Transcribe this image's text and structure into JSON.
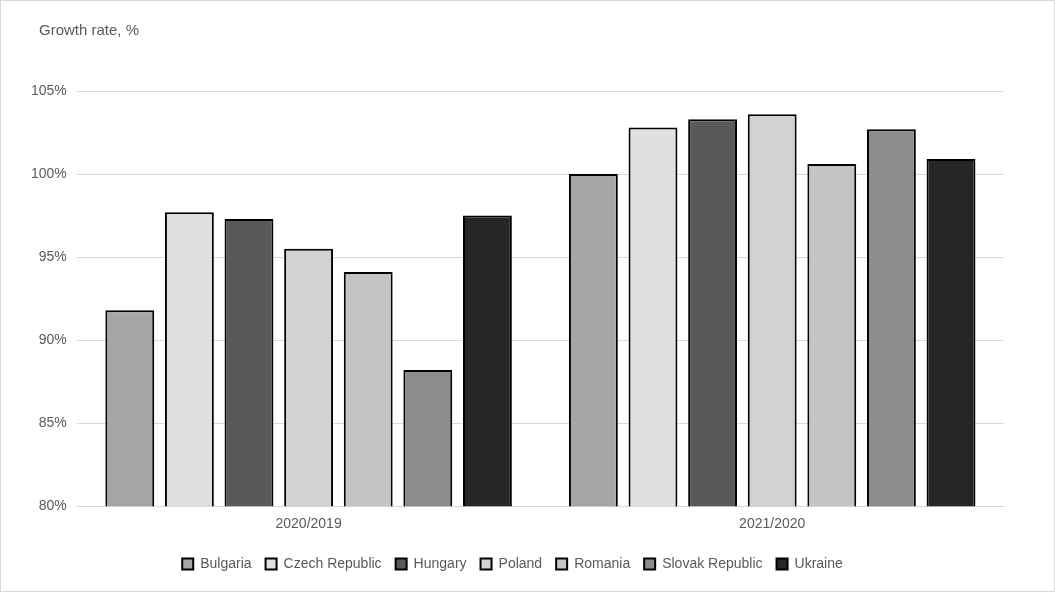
{
  "chart_data": {
    "type": "bar",
    "ylabel": "Growth rate, %",
    "categories": [
      "2020/2019",
      "2021/2020"
    ],
    "series": [
      {
        "name": "Bulgaria",
        "color": "#a6a6a6",
        "values": [
          91.8,
          100.0
        ]
      },
      {
        "name": "Czech Republic",
        "color": "#e0e0e0",
        "values": [
          97.7,
          102.8
        ]
      },
      {
        "name": "Hungary",
        "color": "#595959",
        "values": [
          97.3,
          103.3
        ]
      },
      {
        "name": "Poland",
        "color": "#d2d2d2",
        "values": [
          95.5,
          103.6
        ]
      },
      {
        "name": "Romania",
        "color": "#c4c4c4",
        "values": [
          94.1,
          100.6
        ]
      },
      {
        "name": "Slovak Republic",
        "color": "#8c8c8c",
        "values": [
          88.2,
          102.7
        ]
      },
      {
        "name": "Ukraine",
        "color": "#262626",
        "values": [
          97.5,
          100.9
        ]
      }
    ],
    "ylim": [
      80,
      105
    ],
    "yticks": [
      {
        "value": 80,
        "label": "80%"
      },
      {
        "value": 85,
        "label": "85%"
      },
      {
        "value": 90,
        "label": "90%"
      },
      {
        "value": 95,
        "label": "95%"
      },
      {
        "value": 100,
        "label": "100%"
      },
      {
        "value": 105,
        "label": "105%"
      }
    ],
    "grid": "y",
    "legend": "bottom"
  }
}
